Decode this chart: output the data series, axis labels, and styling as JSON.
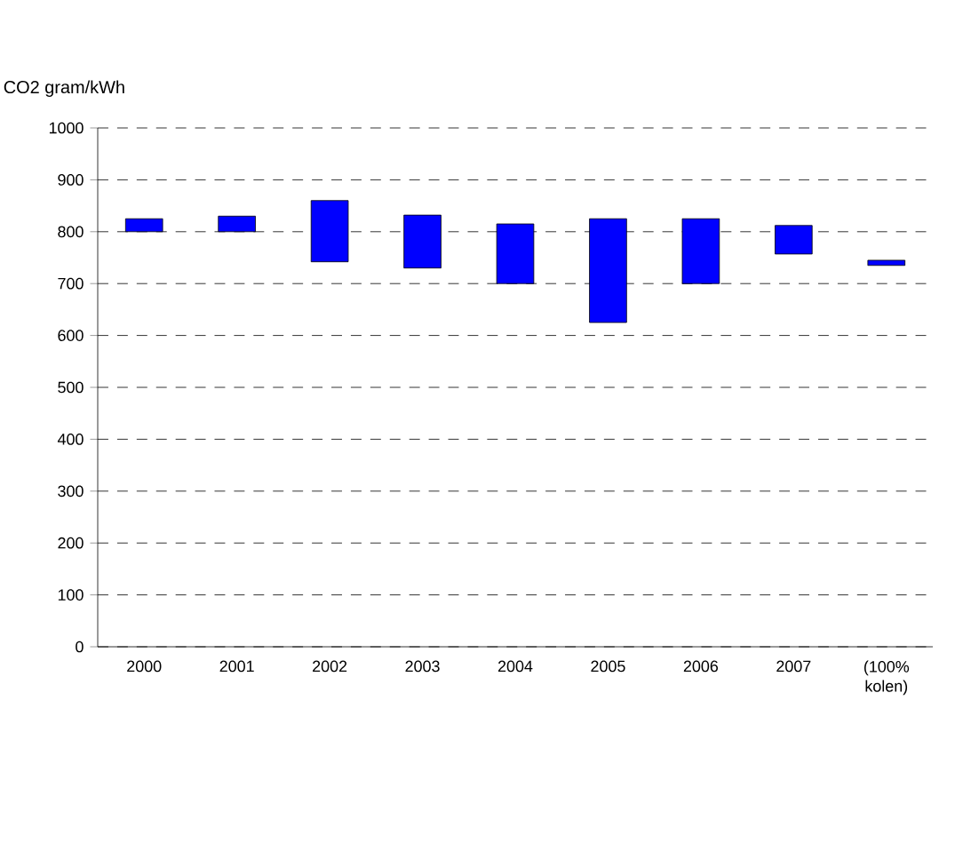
{
  "chart_data": {
    "type": "bar",
    "ylabel": "CO2 gram/kWh",
    "categories": [
      "2000",
      "2001",
      "2002",
      "2003",
      "2004",
      "2005",
      "2006",
      "2007",
      "(100% kolen)"
    ],
    "base": [
      800,
      800,
      742,
      730,
      700,
      625,
      700,
      757,
      735
    ],
    "values": [
      25,
      30,
      118,
      102,
      115,
      200,
      125,
      55,
      10
    ],
    "color": "#0000ff",
    "ylim": [
      0,
      1000
    ],
    "yticks": [
      0,
      100,
      200,
      300,
      400,
      500,
      600,
      700,
      800,
      900,
      1000
    ],
    "grid": "y"
  }
}
